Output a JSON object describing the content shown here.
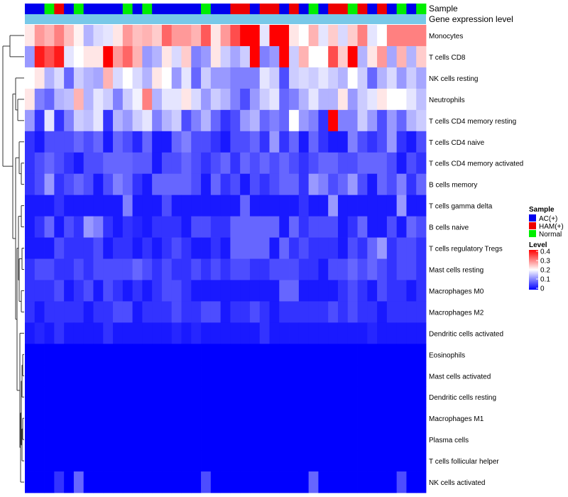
{
  "chart_data": {
    "type": "heatmap",
    "annotation_labels": [
      "Sample",
      "Gene expression level"
    ],
    "rows": [
      "Monocytes",
      "T cells CD8",
      "NK cells resting",
      "Neutrophils",
      "T cells CD4 memory resting",
      "T cells CD4 naive",
      "T cells CD4 memory activated",
      "B cells memory",
      "T cells gamma delta",
      "B cells naive",
      "T cells regulatory  Tregs",
      "Mast cells resting",
      "Macrophages M0",
      "Macrophages M2",
      "Dendritic cells activated",
      "Eosinophils",
      "Mast cells activated",
      "Dendritic cells resting",
      "Macrophages M1",
      "Plasma cells",
      "T cells follicular helper",
      "NK cells activated"
    ],
    "sample_groups": [
      "AC",
      "AC",
      "N",
      "HAM",
      "AC",
      "N",
      "AC",
      "AC",
      "AC",
      "AC",
      "N",
      "AC",
      "N",
      "AC",
      "AC",
      "AC",
      "AC",
      "AC",
      "N",
      "AC",
      "AC",
      "HAM",
      "HAM",
      "AC",
      "HAM",
      "HAM",
      "AC",
      "HAM",
      "AC",
      "N",
      "AC",
      "HAM",
      "HAM",
      "N",
      "HAM",
      "AC",
      "HAM",
      "AC",
      "N",
      "AC",
      "N"
    ],
    "sample_colors": {
      "AC": "#0000ee",
      "HAM": "#ee0000",
      "N": "#00ee00"
    },
    "gene_expression_annotation_color": "#78c8e8",
    "values": [
      [
        0.22,
        0.28,
        0.26,
        0.3,
        0.25,
        0.21,
        0.14,
        0.17,
        0.18,
        0.22,
        0.28,
        0.25,
        0.26,
        0.24,
        0.32,
        0.28,
        0.28,
        0.26,
        0.33,
        0.22,
        0.28,
        0.34,
        0.4,
        0.4,
        0.18,
        0.4,
        0.4,
        0.22,
        0.2,
        0.26,
        0.18,
        0.24,
        0.17,
        0.24,
        0.3,
        0.18,
        0.2,
        0.3,
        0.3,
        0.3,
        0.3
      ],
      [
        0.12,
        0.38,
        0.34,
        0.38,
        0.18,
        0.2,
        0.22,
        0.22,
        0.4,
        0.28,
        0.32,
        0.26,
        0.12,
        0.14,
        0.22,
        0.17,
        0.24,
        0.1,
        0.12,
        0.22,
        0.16,
        0.13,
        0.16,
        0.4,
        0.1,
        0.12,
        0.4,
        0.16,
        0.26,
        0.2,
        0.2,
        0.34,
        0.24,
        0.4,
        0.14,
        0.22,
        0.28,
        0.13,
        0.26,
        0.14,
        0.24
      ],
      [
        0.2,
        0.22,
        0.14,
        0.17,
        0.08,
        0.16,
        0.14,
        0.13,
        0.26,
        0.17,
        0.2,
        0.17,
        0.14,
        0.22,
        0.2,
        0.12,
        0.18,
        0.08,
        0.16,
        0.12,
        0.12,
        0.1,
        0.1,
        0.1,
        0.18,
        0.16,
        0.06,
        0.16,
        0.17,
        0.16,
        0.18,
        0.16,
        0.14,
        0.2,
        0.16,
        0.08,
        0.14,
        0.17,
        0.12,
        0.16,
        0.13
      ],
      [
        0.22,
        0.1,
        0.08,
        0.14,
        0.15,
        0.26,
        0.14,
        0.18,
        0.16,
        0.1,
        0.16,
        0.19,
        0.3,
        0.14,
        0.18,
        0.18,
        0.22,
        0.17,
        0.12,
        0.16,
        0.14,
        0.1,
        0.06,
        0.12,
        0.16,
        0.18,
        0.08,
        0.1,
        0.14,
        0.18,
        0.14,
        0.14,
        0.22,
        0.12,
        0.16,
        0.18,
        0.22,
        0.2,
        0.2,
        0.18,
        0.15
      ],
      [
        0.12,
        0.04,
        0.18,
        0.04,
        0.1,
        0.16,
        0.15,
        0.18,
        0.04,
        0.14,
        0.12,
        0.16,
        0.18,
        0.1,
        0.14,
        0.16,
        0.06,
        0.1,
        0.14,
        0.08,
        0.04,
        0.06,
        0.12,
        0.14,
        0.08,
        0.1,
        0.08,
        0.2,
        0.12,
        0.1,
        0.04,
        0.4,
        0.1,
        0.1,
        0.16,
        0.12,
        0.06,
        0.12,
        0.08,
        0.14,
        0.16
      ],
      [
        0.04,
        0.02,
        0.06,
        0.06,
        0.06,
        0.08,
        0.06,
        0.08,
        0.02,
        0.08,
        0.06,
        0.03,
        0.08,
        0.02,
        0.02,
        0.08,
        0.1,
        0.06,
        0.06,
        0.04,
        0.02,
        0.06,
        0.06,
        0.08,
        0.04,
        0.12,
        0.04,
        0.08,
        0.02,
        0.08,
        0.04,
        0.02,
        0.02,
        0.1,
        0.06,
        0.04,
        0.06,
        0.12,
        0.04,
        0.02,
        0.06
      ],
      [
        0.04,
        0.06,
        0.08,
        0.06,
        0.04,
        0.02,
        0.06,
        0.06,
        0.08,
        0.08,
        0.08,
        0.07,
        0.07,
        0.02,
        0.06,
        0.06,
        0.08,
        0.06,
        0.04,
        0.06,
        0.08,
        0.04,
        0.08,
        0.06,
        0.08,
        0.06,
        0.08,
        0.06,
        0.04,
        0.06,
        0.08,
        0.08,
        0.06,
        0.06,
        0.08,
        0.08,
        0.08,
        0.06,
        0.02,
        0.06,
        0.04
      ],
      [
        0.04,
        0.06,
        0.12,
        0.04,
        0.06,
        0.08,
        0.06,
        0.02,
        0.06,
        0.1,
        0.08,
        0.04,
        0.02,
        0.08,
        0.08,
        0.08,
        0.08,
        0.06,
        0.02,
        0.08,
        0.04,
        0.06,
        0.02,
        0.06,
        0.04,
        0.06,
        0.08,
        0.08,
        0.04,
        0.12,
        0.1,
        0.06,
        0.08,
        0.12,
        0.06,
        0.02,
        0.08,
        0.06,
        0.1,
        0.04,
        0.08
      ],
      [
        0.02,
        0.02,
        0.02,
        0.04,
        0.02,
        0.02,
        0.02,
        0.02,
        0.02,
        0.02,
        0.1,
        0.02,
        0.02,
        0.02,
        0.06,
        0.02,
        0.02,
        0.02,
        0.02,
        0.02,
        0.02,
        0.02,
        0.08,
        0.02,
        0.02,
        0.02,
        0.02,
        0.02,
        0.04,
        0.02,
        0.02,
        0.12,
        0.02,
        0.02,
        0.02,
        0.02,
        0.02,
        0.02,
        0.12,
        0.02,
        0.02
      ],
      [
        0.02,
        0.04,
        0.08,
        0.02,
        0.06,
        0.04,
        0.12,
        0.1,
        0.04,
        0.02,
        0.04,
        0.03,
        0.02,
        0.04,
        0.04,
        0.04,
        0.02,
        0.06,
        0.06,
        0.04,
        0.04,
        0.08,
        0.08,
        0.08,
        0.08,
        0.08,
        0.02,
        0.08,
        0.04,
        0.06,
        0.06,
        0.06,
        0.02,
        0.04,
        0.08,
        0.02,
        0.02,
        0.06,
        0.02,
        0.08,
        0.06
      ],
      [
        0.02,
        0.02,
        0.02,
        0.06,
        0.04,
        0.04,
        0.04,
        0.06,
        0.02,
        0.04,
        0.04,
        0.02,
        0.04,
        0.02,
        0.04,
        0.06,
        0.04,
        0.02,
        0.02,
        0.04,
        0.02,
        0.08,
        0.08,
        0.08,
        0.08,
        0.02,
        0.08,
        0.04,
        0.06,
        0.04,
        0.04,
        0.04,
        0.02,
        0.06,
        0.04,
        0.08,
        0.12,
        0.04,
        0.06,
        0.06,
        0.04
      ],
      [
        0.04,
        0.06,
        0.06,
        0.04,
        0.04,
        0.06,
        0.04,
        0.06,
        0.06,
        0.06,
        0.06,
        0.08,
        0.06,
        0.04,
        0.06,
        0.04,
        0.04,
        0.06,
        0.04,
        0.06,
        0.04,
        0.06,
        0.06,
        0.04,
        0.04,
        0.06,
        0.06,
        0.06,
        0.04,
        0.04,
        0.02,
        0.06,
        0.06,
        0.08,
        0.06,
        0.08,
        0.06,
        0.04,
        0.06,
        0.06,
        0.04
      ],
      [
        0.04,
        0.04,
        0.04,
        0.06,
        0.02,
        0.04,
        0.06,
        0.02,
        0.06,
        0.04,
        0.02,
        0.04,
        0.02,
        0.04,
        0.06,
        0.06,
        0.04,
        0.02,
        0.02,
        0.02,
        0.02,
        0.02,
        0.02,
        0.02,
        0.02,
        0.02,
        0.08,
        0.08,
        0.02,
        0.02,
        0.02,
        0.02,
        0.04,
        0.06,
        0.04,
        0.02,
        0.06,
        0.04,
        0.04,
        0.02,
        0.04
      ],
      [
        0.04,
        0.02,
        0.04,
        0.04,
        0.04,
        0.04,
        0.02,
        0.04,
        0.04,
        0.06,
        0.06,
        0.02,
        0.04,
        0.04,
        0.04,
        0.06,
        0.04,
        0.04,
        0.06,
        0.06,
        0.02,
        0.04,
        0.04,
        0.06,
        0.04,
        0.02,
        0.04,
        0.04,
        0.04,
        0.04,
        0.04,
        0.06,
        0.04,
        0.06,
        0.04,
        0.04,
        0.02,
        0.04,
        0.04,
        0.04,
        0.04
      ],
      [
        0.02,
        0.03,
        0.02,
        0.04,
        0.02,
        0.02,
        0.02,
        0.02,
        0.04,
        0.02,
        0.02,
        0.02,
        0.02,
        0.02,
        0.02,
        0.03,
        0.02,
        0.03,
        0.02,
        0.02,
        0.02,
        0.02,
        0.02,
        0.02,
        0.04,
        0.02,
        0.02,
        0.02,
        0.02,
        0.02,
        0.02,
        0.02,
        0.02,
        0.02,
        0.02,
        0.03,
        0.02,
        0.02,
        0.02,
        0.02,
        0.02
      ],
      [
        0,
        0,
        0,
        0,
        0,
        0,
        0,
        0,
        0,
        0,
        0,
        0,
        0,
        0,
        0,
        0,
        0,
        0,
        0,
        0,
        0,
        0,
        0,
        0,
        0,
        0,
        0,
        0,
        0,
        0,
        0,
        0,
        0,
        0,
        0,
        0,
        0,
        0,
        0,
        0,
        0
      ],
      [
        0,
        0,
        0,
        0,
        0,
        0,
        0,
        0,
        0,
        0,
        0,
        0,
        0,
        0,
        0,
        0,
        0,
        0,
        0,
        0,
        0,
        0,
        0,
        0,
        0,
        0,
        0,
        0,
        0,
        0,
        0,
        0,
        0,
        0,
        0,
        0,
        0,
        0,
        0,
        0,
        0
      ],
      [
        0,
        0,
        0,
        0,
        0,
        0,
        0,
        0,
        0,
        0,
        0,
        0,
        0,
        0,
        0,
        0,
        0,
        0,
        0,
        0,
        0,
        0,
        0,
        0,
        0,
        0,
        0,
        0,
        0,
        0,
        0,
        0,
        0,
        0,
        0,
        0,
        0,
        0,
        0,
        0,
        0
      ],
      [
        0,
        0,
        0,
        0,
        0,
        0,
        0,
        0,
        0,
        0,
        0,
        0,
        0,
        0,
        0,
        0,
        0,
        0,
        0,
        0,
        0,
        0,
        0,
        0,
        0,
        0,
        0,
        0,
        0,
        0,
        0,
        0,
        0,
        0,
        0,
        0,
        0,
        0,
        0,
        0,
        0
      ],
      [
        0,
        0,
        0,
        0,
        0,
        0,
        0,
        0,
        0,
        0,
        0,
        0,
        0,
        0,
        0,
        0,
        0,
        0,
        0,
        0,
        0,
        0,
        0,
        0,
        0,
        0,
        0,
        0,
        0,
        0,
        0,
        0,
        0,
        0,
        0,
        0,
        0,
        0,
        0,
        0,
        0
      ],
      [
        0,
        0,
        0,
        0,
        0,
        0,
        0,
        0,
        0,
        0,
        0,
        0,
        0,
        0,
        0,
        0,
        0,
        0,
        0,
        0,
        0,
        0,
        0,
        0,
        0,
        0,
        0,
        0,
        0,
        0,
        0,
        0,
        0,
        0,
        0,
        0,
        0,
        0,
        0,
        0,
        0
      ],
      [
        0,
        0,
        0,
        0.04,
        0,
        0.08,
        0,
        0,
        0,
        0,
        0,
        0,
        0,
        0,
        0,
        0,
        0,
        0,
        0.06,
        0,
        0,
        0,
        0,
        0,
        0,
        0,
        0,
        0,
        0,
        0.08,
        0,
        0,
        0,
        0,
        0,
        0,
        0,
        0,
        0.06,
        0,
        0
      ]
    ],
    "legend_sample": {
      "title": "Sample",
      "entries": [
        {
          "label": "AC(+)",
          "color": "#0000ee"
        },
        {
          "label": "HAM(+)",
          "color": "#ee0000"
        },
        {
          "label": "Normal",
          "color": "#00ee00"
        }
      ]
    },
    "legend_level": {
      "title": "Level",
      "ticks": [
        "0.4",
        "0.3",
        "0.2",
        "0.1",
        "0"
      ],
      "range": [
        0,
        0.4
      ],
      "colors": {
        "low": "#0000ff",
        "mid": "#ffffff",
        "high": "#ff0000"
      }
    }
  }
}
